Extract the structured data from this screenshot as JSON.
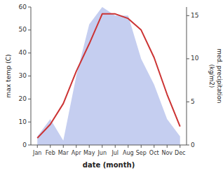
{
  "chart_data": {
    "type": "line",
    "xlabel": "date (month)",
    "ylabel": "max temp (C)",
    "y2label": "med. precipitation\n(kg/m2)",
    "categories": [
      "Jan",
      "Feb",
      "Mar",
      "Apr",
      "May",
      "Jun",
      "Jul",
      "Aug",
      "Sep",
      "Oct",
      "Nov",
      "Dec"
    ],
    "series": [
      {
        "type": "area",
        "axis": "y2",
        "color": "#c5cef0",
        "values": [
          1.0,
          3.0,
          0.5,
          8.0,
          14.0,
          16.0,
          15.0,
          15.0,
          10.0,
          7.0,
          3.0,
          1.0
        ]
      },
      {
        "type": "line",
        "color": "#cc3333",
        "values": [
          3,
          9,
          18,
          32,
          44,
          57,
          57,
          55,
          50,
          38,
          22,
          8
        ]
      }
    ],
    "ylim": [
      0,
      60
    ],
    "yticks": [
      0,
      10,
      20,
      30,
      40,
      50,
      60
    ],
    "y2lim": [
      0,
      16
    ],
    "y2ticks": [
      0,
      5,
      10,
      15
    ],
    "grid": false
  }
}
